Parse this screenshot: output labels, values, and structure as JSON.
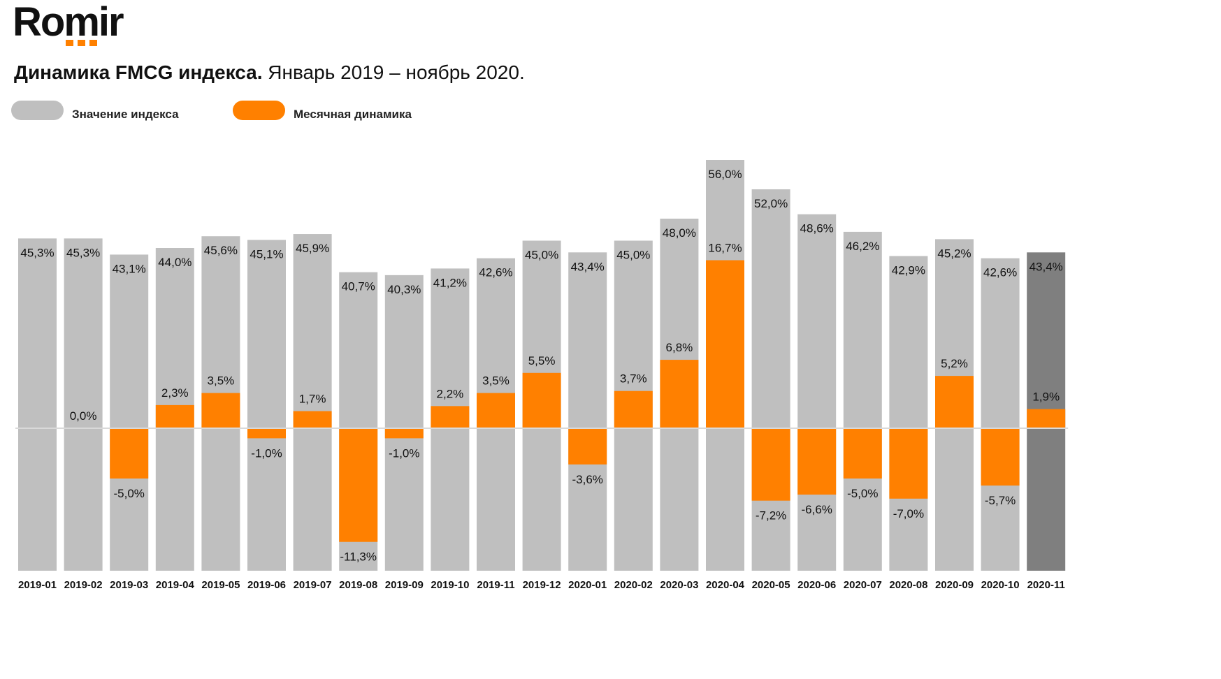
{
  "logo": {
    "text": "Romir"
  },
  "header": {
    "title_bold": "Динамика FMCG индекса.",
    "title_rest": " Январь 2019 – ноябрь 2020."
  },
  "colors": {
    "index": "#bfbfbf",
    "index_highlight": "#7f7f7f",
    "monthly": "#ff8000",
    "brand_accent": "#ff8000"
  },
  "chart_data": {
    "type": "bar",
    "categories": [
      "2019-01",
      "2019-02",
      "2019-03",
      "2019-04",
      "2019-05",
      "2019-06",
      "2019-07",
      "2019-08",
      "2019-09",
      "2019-10",
      "2019-11",
      "2019-12",
      "2020-01",
      "2020-02",
      "2020-03",
      "2020-04",
      "2020-05",
      "2020-06",
      "2020-07",
      "2020-08",
      "2020-09",
      "2020-10",
      "2020-11"
    ],
    "series": [
      {
        "name": "Значение индекса",
        "values": [
          45.3,
          45.3,
          43.1,
          44.0,
          45.6,
          45.1,
          45.9,
          40.7,
          40.3,
          41.2,
          42.6,
          45.0,
          43.4,
          45.0,
          48.0,
          56.0,
          52.0,
          48.6,
          46.2,
          42.9,
          45.2,
          42.6,
          43.4
        ],
        "labels": [
          "45,3%",
          "45,3%",
          "43,1%",
          "44,0%",
          "45,6%",
          "45,1%",
          "45,9%",
          "40,7%",
          "40,3%",
          "41,2%",
          "42,6%",
          "45,0%",
          "43,4%",
          "45,0%",
          "48,0%",
          "56,0%",
          "52,0%",
          "48,6%",
          "46,2%",
          "42,9%",
          "45,2%",
          "42,6%",
          "43,4%"
        ]
      },
      {
        "name": "Месячная динамика",
        "values": [
          null,
          0.0,
          -5.0,
          2.3,
          3.5,
          -1.0,
          1.7,
          -11.3,
          -1.0,
          2.2,
          3.5,
          5.5,
          -3.6,
          3.7,
          6.8,
          16.7,
          -7.2,
          -6.6,
          -5.0,
          -7.0,
          5.2,
          -5.7,
          1.9
        ],
        "labels": [
          "",
          "0,0%",
          "-5,0%",
          "2,3%",
          "3,5%",
          "-1,0%",
          "1,7%",
          "-11,3%",
          "-1,0%",
          "2,2%",
          "3,5%",
          "5,5%",
          "-3,6%",
          "3,7%",
          "6,8%",
          "16,7%",
          "-7,2%",
          "-6,6%",
          "-5,0%",
          "-7,0%",
          "5,2%",
          "-5,7%",
          "1,9%"
        ]
      }
    ],
    "highlight_last": true,
    "legend_position": "top-left"
  }
}
